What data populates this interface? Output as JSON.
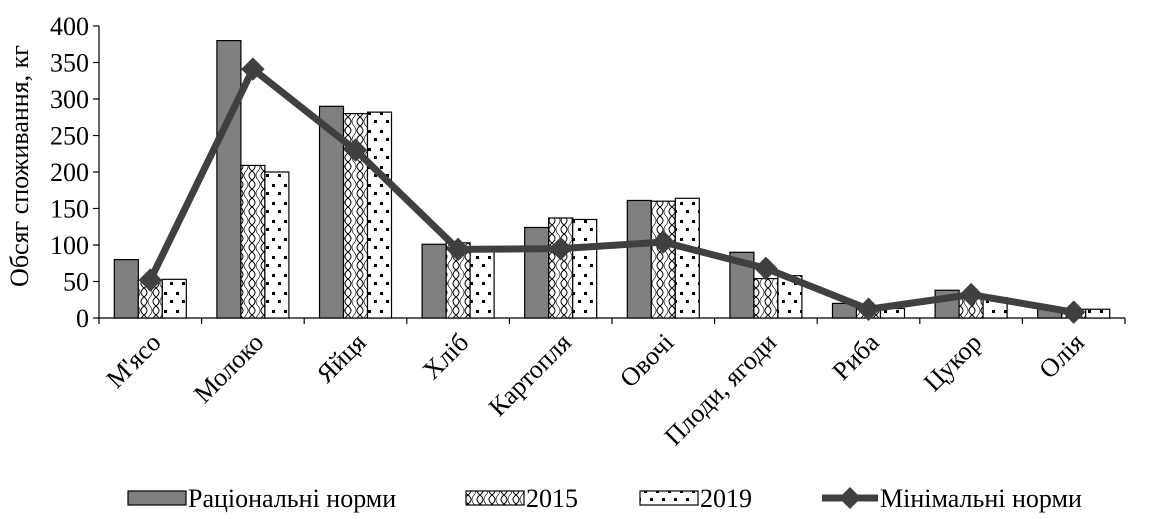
{
  "chart_data": {
    "type": "bar",
    "title": "",
    "xlabel": "",
    "ylabel": "Обсяг споживання, кг",
    "ylim": [
      0,
      400
    ],
    "yticks": [
      0,
      50,
      100,
      150,
      200,
      250,
      300,
      350,
      400
    ],
    "grid": false,
    "legend_position": "bottom",
    "categories": [
      "М'ясо",
      "Молоко",
      "Яйця",
      "Хліб",
      "Картопля",
      "Овочі",
      "Плоди, ягоди",
      "Риба",
      "Цукор",
      "Олія"
    ],
    "series": [
      {
        "name": "Раціональні норми",
        "kind": "bar",
        "pattern": "solid-gray",
        "values": [
          80,
          380,
          290,
          101,
          124,
          161,
          90,
          20,
          38,
          13
        ]
      },
      {
        "name": "2015",
        "kind": "bar",
        "pattern": "wave-hatch",
        "values": [
          52,
          209,
          280,
          103,
          137,
          160,
          54,
          13,
          30,
          12
        ]
      },
      {
        "name": "2019",
        "kind": "bar",
        "pattern": "dotted",
        "values": [
          53,
          200,
          282,
          94,
          135,
          164,
          58,
          13,
          28,
          12
        ]
      },
      {
        "name": "Мінімальні норми",
        "kind": "line",
        "marker": "diamond",
        "values": [
          52,
          341,
          230,
          94,
          95,
          104,
          68,
          12,
          32,
          8
        ]
      }
    ],
    "colors": {
      "rational": "#808080",
      "line": "#404040",
      "outline": "#000000"
    }
  }
}
